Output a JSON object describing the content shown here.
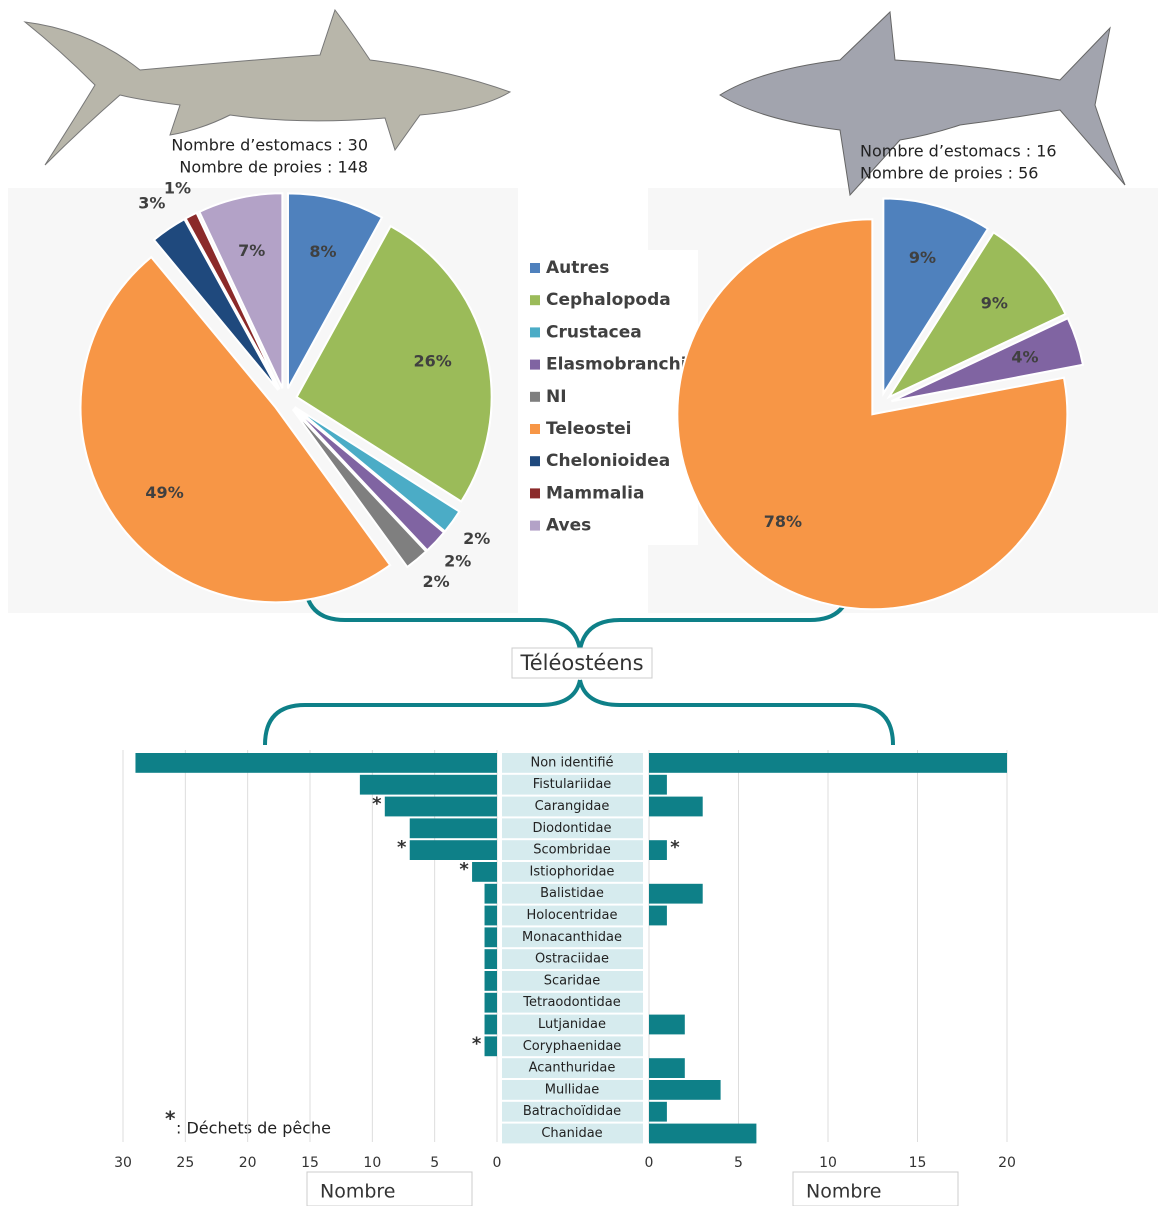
{
  "header": {
    "left_stomachs": "Nombre d’estomacs : 30",
    "left_prey": "Nombre de proies : 148",
    "right_stomachs": "Nombre d’estomacs : 16",
    "right_prey": "Nombre de proies : 56",
    "group_label": "Téléostéens",
    "footnote_symbol": "*",
    "footnote": ": Déchets de pêche"
  },
  "chart_data": [
    {
      "type": "pie",
      "categories": [
        "Autres",
        "Cephalopoda",
        "Crustacea",
        "Elasmobranchii",
        "NI",
        "Teleostei",
        "Chelonioidea",
        "Mammalia",
        "Aves"
      ],
      "colors": [
        "#4f81bd",
        "#9bbb59",
        "#4bacc6",
        "#8064a2",
        "#7f7f7f",
        "#f79646",
        "#1f497d",
        "#8b2a2a",
        "#b3a2c7"
      ],
      "values": [
        8,
        26,
        2,
        2,
        2,
        49,
        3,
        1,
        7
      ],
      "value_labels": [
        "8%",
        "26%",
        "2%",
        "2%",
        "2%",
        "49%",
        "3%",
        "1%",
        "7%"
      ]
    },
    {
      "type": "pie",
      "categories": [
        "Autres",
        "Cephalopoda",
        "Elasmobranchii",
        "Teleostei"
      ],
      "values": [
        9,
        9,
        4,
        78
      ],
      "value_labels": [
        "9%",
        "9%",
        "4%",
        "78%"
      ]
    },
    {
      "type": "bar",
      "orientation": "horizontal",
      "reversed": true,
      "color": "#0e8088",
      "categories": [
        "Non identifié",
        "Fistulariidae",
        "Carangidae",
        "Diodontidae",
        "Scombridae",
        "Istiophoridae",
        "Balistidae",
        "Holocentridae",
        "Monacanthidae",
        "Ostraciidae",
        "Scaridae",
        "Tetraodontidae",
        "Lutjanidae",
        "Coryphaenidae",
        "Acanthuridae",
        "Mullidae",
        "Batrachoïdidae",
        "Chanidae"
      ],
      "values": [
        29,
        11,
        9,
        7,
        7,
        2,
        1,
        1,
        1,
        1,
        1,
        1,
        1,
        1,
        0,
        0,
        0,
        0
      ],
      "starred": [
        2,
        4,
        5,
        13
      ],
      "xlim": [
        0,
        30
      ],
      "xticks": [
        0,
        5,
        10,
        15,
        20,
        25,
        30
      ],
      "xlabel": "Nombre",
      "grid": true
    },
    {
      "type": "bar",
      "orientation": "horizontal",
      "reversed": false,
      "color": "#0e8088",
      "values": [
        20,
        1,
        3,
        0,
        1,
        0,
        3,
        1,
        0,
        0,
        0,
        0,
        2,
        0,
        2,
        4,
        1,
        6
      ],
      "starred": [
        4
      ],
      "xlim": [
        0,
        20
      ],
      "xticks": [
        0,
        5,
        10,
        15,
        20
      ],
      "xlabel": "Nombre",
      "grid": true
    }
  ]
}
